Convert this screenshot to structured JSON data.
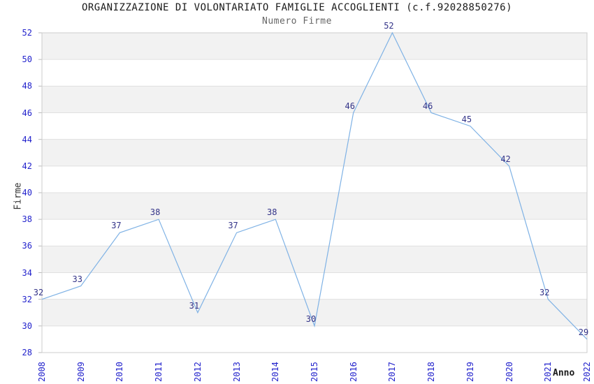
{
  "chart_data": {
    "type": "line",
    "title": "ORGANIZZAZIONE DI VOLONTARIATO FAMIGLIE ACCOGLIENTI (c.f.92028850276)",
    "subtitle": "Numero Firme",
    "xlabel": "Anno",
    "ylabel": "Firme",
    "categories": [
      "2008",
      "2009",
      "2010",
      "2011",
      "2012",
      "2013",
      "2014",
      "2015",
      "2016",
      "2017",
      "2018",
      "2019",
      "2020",
      "2021",
      "2022"
    ],
    "values": [
      32,
      33,
      37,
      38,
      31,
      37,
      38,
      30,
      46,
      52,
      46,
      45,
      42,
      32,
      29
    ],
    "point_labels_visible": true,
    "ylim": [
      28,
      52
    ],
    "yticks": [
      28,
      30,
      32,
      34,
      36,
      38,
      40,
      42,
      44,
      46,
      48,
      50,
      52
    ],
    "grid": "horizontal-alternating-bands",
    "legend": "none",
    "colors": {
      "line": "#7FB2E5",
      "axis_tick_text": "#2222CC",
      "point_label_text": "#333388",
      "band_fill": "#F2F2F2",
      "grid_line": "#E0E0E0",
      "tick_mark": "#BBBBBB",
      "plot_border": "#CCCCCC",
      "title_text": "#1A1A1A",
      "subtitle_text": "#666666"
    }
  }
}
